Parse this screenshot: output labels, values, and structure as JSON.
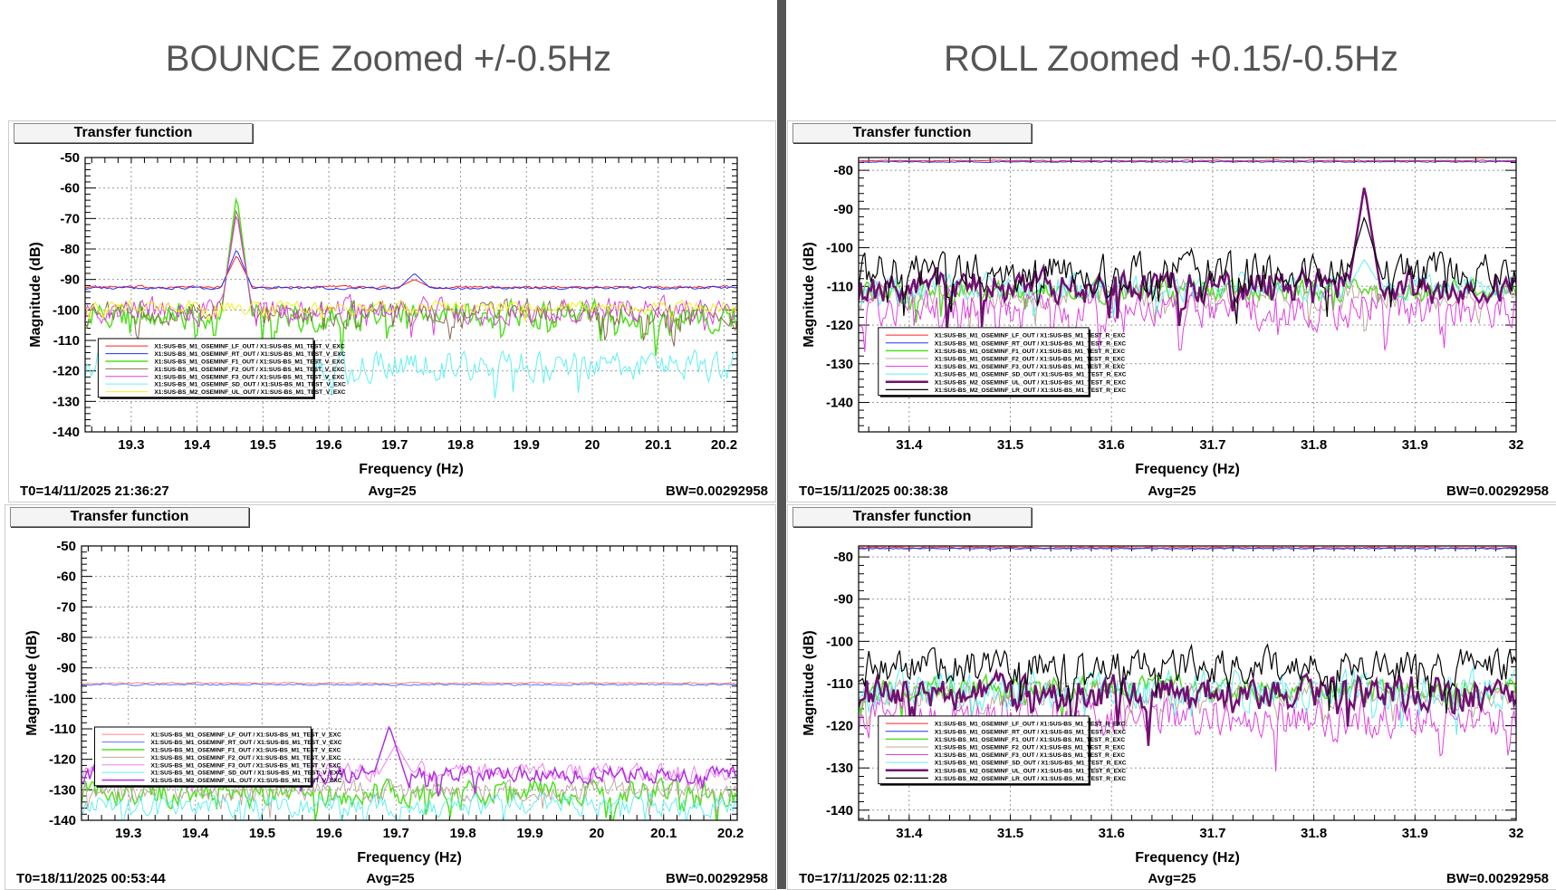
{
  "titles": {
    "left": "BOUNCE Zoomed +/-0.5Hz",
    "right": "ROLL Zoomed +0.15/-0.5Hz"
  },
  "chart_data": [
    {
      "id": "tl",
      "type": "line",
      "title": "Transfer function",
      "xlabel": "Frequency (Hz)",
      "ylabel": "Magnitude (dB)",
      "xlim": [
        19.23,
        20.22
      ],
      "ylim": [
        -140,
        -50
      ],
      "xticks": [
        19.3,
        19.4,
        19.5,
        19.6,
        19.7,
        19.8,
        19.9,
        20,
        20.1,
        20.2
      ],
      "yticks": [
        -140,
        -130,
        -120,
        -110,
        -100,
        -90,
        -80,
        -70,
        -60,
        -50
      ],
      "footer": {
        "t0": "T0=14/11/2025 21:36:27",
        "avg": "Avg=25",
        "bw": "BW=0.00292958"
      },
      "series": [
        {
          "name": "X1:SUS-BS_M1_OSEMINF_LF_OUT / X1:SUS-BS_M1_TEST_V_EXC",
          "color": "#ff2020",
          "w": 1,
          "level": -92.5,
          "noise": 0.6,
          "peaks": [
            [
              19.46,
              -82
            ],
            [
              19.73,
              -90
            ]
          ]
        },
        {
          "name": "X1:SUS-BS_M1_OSEMINF_RT_OUT / X1:SUS-BS_M1_TEST_V_EXC",
          "color": "#2030ff",
          "w": 1,
          "level": -92.8,
          "noise": 0.6,
          "peaks": [
            [
              19.46,
              -80
            ],
            [
              19.73,
              -88
            ]
          ]
        },
        {
          "name": "X1:SUS-BS_M1_OSEMINF_F1_OUT / X1:SUS-BS_M1_TEST_V_EXC",
          "color": "#50e020",
          "w": 1.5,
          "level": -102,
          "noise": 7,
          "peaks": [
            [
              19.46,
              -62
            ]
          ]
        },
        {
          "name": "X1:SUS-BS_M1_OSEMINF_F2_OUT / X1:SUS-BS_M1_TEST_V_EXC",
          "color": "#8a6a50",
          "w": 1,
          "level": -101,
          "noise": 6,
          "peaks": [
            [
              19.46,
              -66
            ]
          ]
        },
        {
          "name": "X1:SUS-BS_M1_OSEMINF_F3_OUT / X1:SUS-BS_M1_TEST_V_EXC",
          "color": "#e040e0",
          "w": 1,
          "level": -100,
          "noise": 6,
          "peaks": [
            [
              19.46,
              -68
            ]
          ]
        },
        {
          "name": "X1:SUS-BS_M1_OSEMINF_SD_OUT / X1:SUS-BS_M1_TEST_V_EXC",
          "color": "#60f0f0",
          "w": 1,
          "level": -118,
          "noise": 7,
          "peaks": []
        },
        {
          "name": "X1:SUS-BS_M2_OSEMINF_UL_OUT / X1:SUS-BS_M1_TEST_V_EXC",
          "color": "#f0f020",
          "w": 1,
          "level": -99,
          "noise": 3,
          "peaks": []
        }
      ]
    },
    {
      "id": "tr",
      "type": "line",
      "title": "Transfer function",
      "xlabel": "Frequency (Hz)",
      "ylabel": "Magnitude (dB)",
      "xlim": [
        31.35,
        32.0
      ],
      "ylim": [
        -147.6,
        -76.7
      ],
      "xticks": [
        31.4,
        31.5,
        31.6,
        31.7,
        31.8,
        31.9,
        32
      ],
      "yticks": [
        -140,
        -130,
        -120,
        -110,
        -100,
        -90,
        -80
      ],
      "footer": {
        "t0": "T0=15/11/2025 00:38:38",
        "avg": "Avg=25",
        "bw": "BW=0.00292958"
      },
      "series": [
        {
          "name": "X1:SUS-BS_M1_OSEMINF_LF_OUT / X1:SUS-BS_M1_TEST_R_EXC",
          "color": "#ff2020",
          "w": 1,
          "level": -77.5,
          "noise": 0.2,
          "peaks": []
        },
        {
          "name": "X1:SUS-BS_M1_OSEMINF_RT_OUT / X1:SUS-BS_M1_TEST_R_EXC",
          "color": "#2030ff",
          "w": 1,
          "level": -77.8,
          "noise": 0.2,
          "peaks": []
        },
        {
          "name": "X1:SUS-BS_M1_OSEMINF_F1_OUT / X1:SUS-BS_M1_TEST_R_EXC",
          "color": "#50e020",
          "w": 1.5,
          "level": -111,
          "noise": 4,
          "peaks": []
        },
        {
          "name": "X1:SUS-BS_M1_OSEMINF_F2_OUT / X1:SUS-BS_M1_TEST_R_EXC",
          "color": "#c0a8a0",
          "w": 1,
          "level": -112,
          "noise": 5,
          "peaks": []
        },
        {
          "name": "X1:SUS-BS_M1_OSEMINF_F3_OUT / X1:SUS-BS_M1_TEST_R_EXC",
          "color": "#e040e0",
          "w": 1,
          "level": -116,
          "noise": 7,
          "peaks": []
        },
        {
          "name": "X1:SUS-BS_M1_OSEMINF_SD_OUT / X1:SUS-BS_M1_TEST_R_EXC",
          "color": "#60f0f0",
          "w": 1,
          "level": -110,
          "noise": 5,
          "peaks": [
            [
              31.85,
              -103
            ]
          ]
        },
        {
          "name": "X1:SUS-BS_M2_OSEMINF_UL_OUT / X1:SUS-BS_M1_TEST_R_EXC",
          "color": "#701070",
          "w": 2.5,
          "level": -110,
          "noise": 6,
          "peaks": [
            [
              31.85,
              -84
            ]
          ]
        },
        {
          "name": "X1:SUS-BS_M2_OSEMINF_LR_OUT / X1:SUS-BS_M1_TEST_R_EXC",
          "color": "#000000",
          "w": 1.2,
          "level": -106,
          "noise": 7,
          "peaks": [
            [
              31.85,
              -92
            ]
          ]
        }
      ]
    },
    {
      "id": "bl",
      "type": "line",
      "title": "Transfer function",
      "xlabel": "Frequency (Hz)",
      "ylabel": "Magnitude (dB)",
      "xlim": [
        19.23,
        20.21
      ],
      "ylim": [
        -140,
        -50
      ],
      "xticks": [
        19.3,
        19.4,
        19.5,
        19.6,
        19.7,
        19.8,
        19.9,
        20,
        20.1,
        20.2
      ],
      "yticks": [
        -140,
        -130,
        -120,
        -110,
        -100,
        -90,
        -80,
        -70,
        -60,
        -50
      ],
      "footer": {
        "t0": "T0=18/11/2025 00:53:44",
        "avg": "Avg=25",
        "bw": "BW=0.00292958"
      },
      "series": [
        {
          "name": "X1:SUS-BS_M1_OSEMINF_LF_OUT / X1:SUS-BS_M1_TEST_V_EXC",
          "color": "#ff8080",
          "w": 1,
          "level": -95,
          "noise": 0.4,
          "peaks": []
        },
        {
          "name": "X1:SUS-BS_M1_OSEMINF_RT_OUT / X1:SUS-BS_M1_TEST_V_EXC",
          "color": "#6070ff",
          "w": 1,
          "level": -95.5,
          "noise": 0.4,
          "peaks": []
        },
        {
          "name": "X1:SUS-BS_M1_OSEMINF_F1_OUT / X1:SUS-BS_M1_TEST_V_EXC",
          "color": "#50e020",
          "w": 1.5,
          "level": -131,
          "noise": 6,
          "peaks": []
        },
        {
          "name": "X1:SUS-BS_M1_OSEMINF_F2_OUT / X1:SUS-BS_M1_TEST_V_EXC",
          "color": "#c0a8a0",
          "w": 1,
          "level": -130,
          "noise": 5,
          "peaks": []
        },
        {
          "name": "X1:SUS-BS_M1_OSEMINF_F3_OUT / X1:SUS-BS_M1_TEST_V_EXC",
          "color": "#f080f0",
          "w": 1,
          "level": -124,
          "noise": 4,
          "peaks": [
            [
              19.7,
              -115
            ]
          ]
        },
        {
          "name": "X1:SUS-BS_M1_OSEMINF_SD_OUT / X1:SUS-BS_M1_TEST_V_EXC",
          "color": "#60f0f0",
          "w": 1,
          "level": -135,
          "noise": 5,
          "peaks": []
        },
        {
          "name": "X1:SUS-BS_M2_OSEMINF_UL_OUT / X1:SUS-BS_M1_TEST_V_EXC",
          "color": "#b030e0",
          "w": 1.5,
          "level": -125,
          "noise": 4,
          "peaks": [
            [
              19.69,
              -109
            ]
          ]
        }
      ]
    },
    {
      "id": "br",
      "type": "line",
      "title": "Transfer function",
      "xlabel": "Frequency (Hz)",
      "ylabel": "Magnitude (dB)",
      "xlim": [
        31.35,
        32.0
      ],
      "ylim": [
        -142.4,
        -77.4
      ],
      "xticks": [
        31.4,
        31.5,
        31.6,
        31.7,
        31.8,
        31.9,
        32
      ],
      "yticks": [
        -140,
        -130,
        -120,
        -110,
        -100,
        -90,
        -80
      ],
      "footer": {
        "t0": "T0=17/11/2025 02:11:28",
        "avg": "Avg=25",
        "bw": "BW=0.00292958"
      },
      "series": [
        {
          "name": "X1:SUS-BS_M1_OSEMINF_LF_OUT / X1:SUS-BS_M1_TEST_R_EXC",
          "color": "#ff2020",
          "w": 1,
          "level": -77.8,
          "noise": 0.2,
          "peaks": []
        },
        {
          "name": "X1:SUS-BS_M1_OSEMINF_RT_OUT / X1:SUS-BS_M1_TEST_R_EXC",
          "color": "#2030ff",
          "w": 1,
          "level": -78,
          "noise": 0.2,
          "peaks": []
        },
        {
          "name": "X1:SUS-BS_M1_OSEMINF_F1_OUT / X1:SUS-BS_M1_TEST_R_EXC",
          "color": "#50e020",
          "w": 1.5,
          "level": -111,
          "noise": 4,
          "peaks": []
        },
        {
          "name": "X1:SUS-BS_M1_OSEMINF_F2_OUT / X1:SUS-BS_M1_TEST_R_EXC",
          "color": "#c0a8a0",
          "w": 1,
          "level": -113,
          "noise": 5,
          "peaks": []
        },
        {
          "name": "X1:SUS-BS_M1_OSEMINF_F3_OUT / X1:SUS-BS_M1_TEST_R_EXC",
          "color": "#e040e0",
          "w": 1,
          "level": -118,
          "noise": 7,
          "peaks": []
        },
        {
          "name": "X1:SUS-BS_M1_OSEMINF_SD_OUT / X1:SUS-BS_M1_TEST_R_EXC",
          "color": "#60f0f0",
          "w": 1,
          "level": -112,
          "noise": 7,
          "peaks": []
        },
        {
          "name": "X1:SUS-BS_M2_OSEMINF_UL_OUT / X1:SUS-BS_M1_TEST_R_EXC",
          "color": "#701070",
          "w": 2.5,
          "level": -112,
          "noise": 6,
          "peaks": []
        },
        {
          "name": "X1:SUS-BS_M2_OSEMINF_LR_OUT / X1:SUS-BS_M1_TEST_R_EXC",
          "color": "#000000",
          "w": 1.2,
          "level": -106,
          "noise": 6,
          "peaks": []
        }
      ]
    }
  ]
}
